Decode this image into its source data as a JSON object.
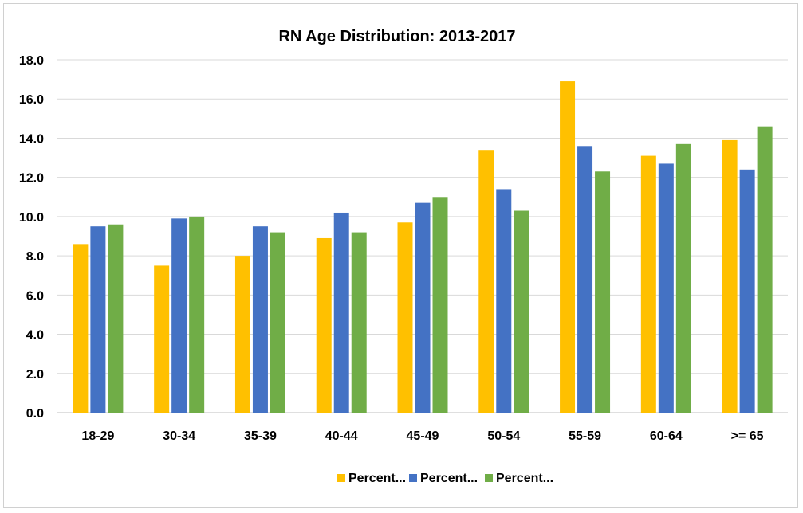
{
  "chart_data": {
    "type": "bar",
    "title": "RN Age Distribution: 2013-2017",
    "xlabel": "",
    "ylabel": "",
    "categories": [
      "18-29",
      "30-34",
      "35-39",
      "40-44",
      "45-49",
      "50-54",
      "55-59",
      "60-64",
      ">= 65"
    ],
    "series": [
      {
        "name": "Percent...",
        "color": "#FFC000",
        "values": [
          8.6,
          7.5,
          8.0,
          8.9,
          9.7,
          13.4,
          16.9,
          13.1,
          13.9
        ]
      },
      {
        "name": "Percent...",
        "color": "#4472C4",
        "values": [
          9.5,
          9.9,
          9.5,
          10.2,
          10.7,
          11.4,
          13.6,
          12.7,
          12.4
        ]
      },
      {
        "name": "Percent...",
        "color": "#70AD47",
        "values": [
          9.6,
          10.0,
          9.2,
          9.2,
          11.0,
          10.3,
          12.3,
          13.7,
          14.6
        ]
      }
    ],
    "ylim": [
      0,
      18
    ],
    "yticks": [
      "0.0",
      "2.0",
      "4.0",
      "6.0",
      "8.0",
      "10.0",
      "12.0",
      "14.0",
      "16.0",
      "18.0"
    ],
    "grid": true,
    "legend": "bottom"
  }
}
